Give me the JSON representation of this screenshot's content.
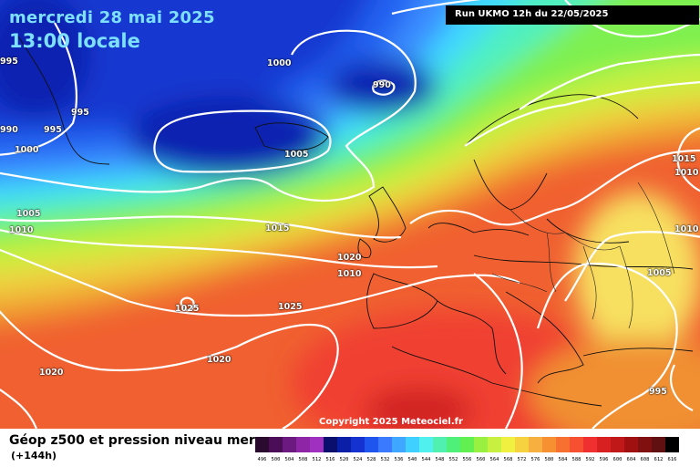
{
  "header": {
    "date": "mercredi 28 mai 2025",
    "time": "13:00 locale",
    "run": "Run UKMO 12h du 22/05/2025"
  },
  "copyright": "Copyright 2025 Meteociel.fr",
  "footer": {
    "title": "Géop z500 et pression niveau mer",
    "subtitle": "(+144h)"
  },
  "isobar_labels": [
    "995",
    "1000",
    "990",
    "995",
    "990",
    "995",
    "1000",
    "1005",
    "1005",
    "1010",
    "1015",
    "1020",
    "1010",
    "1025",
    "1025",
    "1020",
    "1020",
    "1015",
    "1010",
    "1010",
    "1005",
    "995"
  ],
  "legend": {
    "labels": [
      "496",
      "500",
      "504",
      "508",
      "512",
      "516",
      "520",
      "524",
      "528",
      "532",
      "536",
      "540",
      "544",
      "548",
      "552",
      "556",
      "560",
      "564",
      "568",
      "572",
      "576",
      "580",
      "584",
      "588",
      "592",
      "596",
      "600",
      "604",
      "608",
      "612",
      "616"
    ],
    "colors": [
      "#2a0a2e",
      "#4b0d57",
      "#6d1a80",
      "#8d25a6",
      "#a030c0",
      "#0a0f6e",
      "#0a1ea8",
      "#1432d0",
      "#1e55ee",
      "#3a7aff",
      "#3fa7ff",
      "#3fd0ff",
      "#50f0ee",
      "#50f0b0",
      "#4ef07a",
      "#62f050",
      "#98f040",
      "#c8f040",
      "#f0f040",
      "#f7d240",
      "#f7b040",
      "#f79030",
      "#f77030",
      "#f75030",
      "#f03030",
      "#d82020",
      "#c01818",
      "#a01010",
      "#801010",
      "#601010",
      "#000000"
    ]
  }
}
